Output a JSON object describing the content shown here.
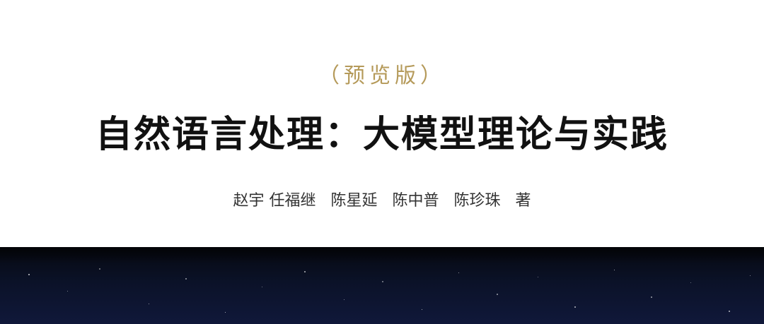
{
  "cover": {
    "edition": "（预览版）",
    "title": "自然语言处理：大模型理论与实践",
    "authors": "赵宇 任福继   陈星延   陈中普   陈珍珠   著"
  },
  "colors": {
    "edition": "#b59a5a",
    "title": "#111111",
    "authors": "#333333",
    "night_sky": "#0b1228"
  }
}
